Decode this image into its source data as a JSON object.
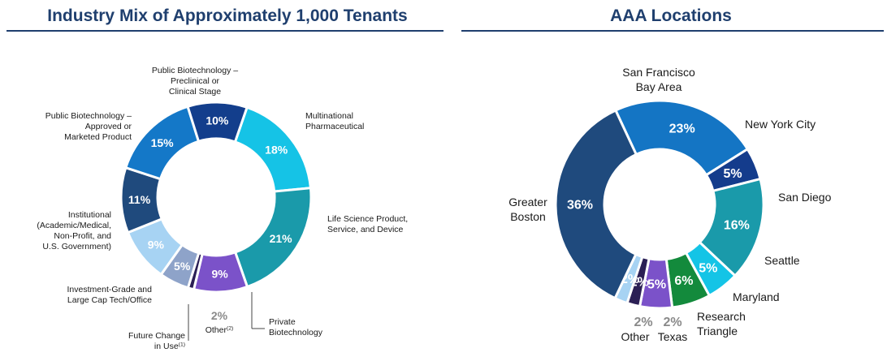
{
  "chart_data": [
    {
      "type": "pie",
      "title": "Industry Mix of Approximately 1,000 Tenants",
      "slices": [
        {
          "value": 18,
          "pct_label": "18%",
          "label": [
            "Multinational",
            "Pharmaceutical"
          ],
          "color": "#15c3e6"
        },
        {
          "value": 21,
          "pct_label": "21%",
          "label": [
            "Life Science Product,",
            "Service, and Device"
          ],
          "color": "#1a9aaa"
        },
        {
          "value": 9,
          "pct_label": "9%",
          "label": [
            "Private",
            "Biotechnology"
          ],
          "color": "#7b52c9"
        },
        {
          "value": 1,
          "pct_label": "",
          "label": [
            "Future Change",
            "in Use(1)"
          ],
          "color": "#2b1f55"
        },
        {
          "value": 5,
          "pct_label": "5%",
          "label": [],
          "color": "#8ea3c9"
        },
        {
          "value": 9,
          "pct_label": "9%",
          "label": [
            "Investment-Grade and",
            "Large Cap Tech/Office"
          ],
          "color": "#a7d3f3"
        },
        {
          "value": 11,
          "pct_label": "11%",
          "label": [
            "Institutional",
            "(Academic/Medical,",
            "Non-Profit, and",
            "U.S. Government)"
          ],
          "color": "#1f4a7d"
        },
        {
          "value": 15,
          "pct_label": "15%",
          "label": [
            "Public Biotechnology –",
            "Approved or",
            "Marketed Product"
          ],
          "color": "#1478c8"
        },
        {
          "value": 10,
          "pct_label": "10%",
          "label": [
            "Public Biotechnology –",
            "Preclinical or",
            "Clinical Stage"
          ],
          "color": "#133e8c"
        }
      ],
      "other_label": "Other(2)",
      "other_pct": "2%"
    },
    {
      "type": "pie",
      "title": "AAA Locations",
      "slices": [
        {
          "value": 23,
          "pct_label": "23%",
          "label": [
            "San Francisco",
            "Bay Area"
          ],
          "color": "#1475c4"
        },
        {
          "value": 5,
          "pct_label": "5%",
          "label": [
            "New York City"
          ],
          "color": "#143c8c"
        },
        {
          "value": 16,
          "pct_label": "16%",
          "label": [
            "San Diego"
          ],
          "color": "#1a9aaa"
        },
        {
          "value": 5,
          "pct_label": "5%",
          "label": [
            "Seattle"
          ],
          "color": "#14c4e6"
        },
        {
          "value": 6,
          "pct_label": "6%",
          "label": [
            "Maryland"
          ],
          "color": "#138a3c"
        },
        {
          "value": 5,
          "pct_label": "5%",
          "label": [
            "Research",
            "Triangle"
          ],
          "color": "#7b52c9"
        },
        {
          "value": 2,
          "pct_label": "2%",
          "label": [
            "Texas"
          ],
          "color": "#2b1f55"
        },
        {
          "value": 2,
          "pct_label": "2%",
          "label": [
            "Other"
          ],
          "color": "#a7d3f3"
        },
        {
          "value": 36,
          "pct_label": "36%",
          "label": [
            "Greater",
            "Boston"
          ],
          "color": "#1f4a7d"
        }
      ]
    }
  ]
}
